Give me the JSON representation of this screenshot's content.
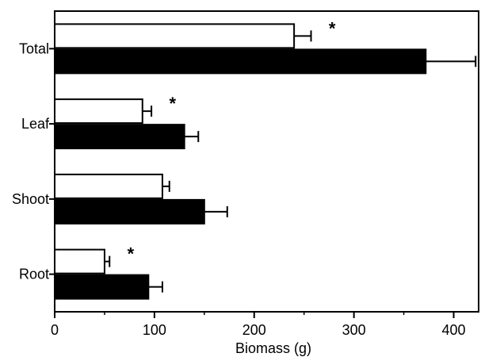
{
  "chart_data": {
    "type": "bar",
    "orientation": "horizontal",
    "categories": [
      "Total",
      "Leaf",
      "Shoot",
      "Root"
    ],
    "series": [
      {
        "fill": "#ffffff",
        "values": [
          240,
          88,
          108,
          50
        ],
        "errors": [
          17,
          9,
          7,
          5
        ]
      },
      {
        "fill": "#000000",
        "values": [
          372,
          130,
          150,
          94
        ],
        "errors": [
          50,
          14,
          23,
          14
        ]
      }
    ],
    "significance": [
      "*",
      "*",
      "",
      "*"
    ],
    "xlabel": "Biomass (g)",
    "xlim": [
      0,
      425
    ],
    "xticks": [
      0,
      100,
      200,
      300,
      400
    ],
    "legend": "none",
    "grid": false
  }
}
